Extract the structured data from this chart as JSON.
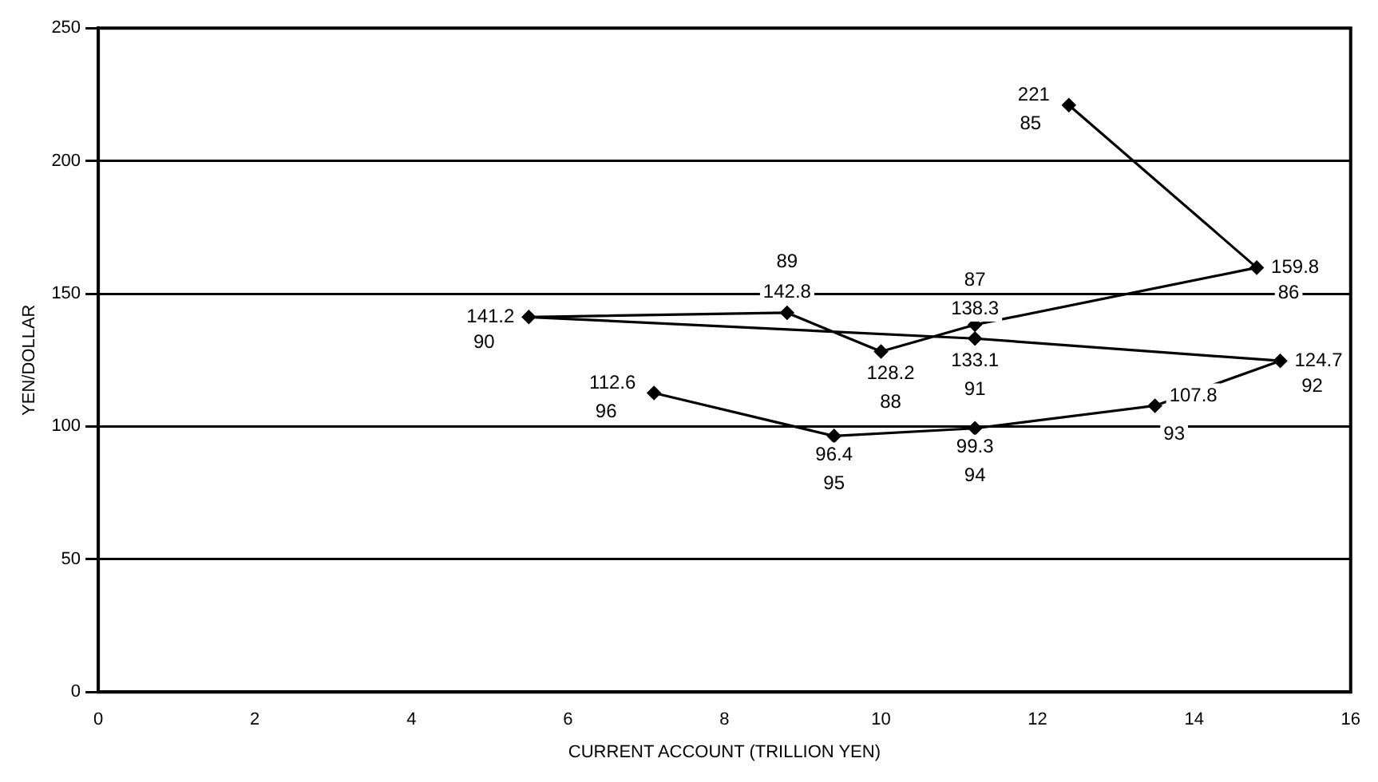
{
  "chart_data": {
    "type": "line",
    "xlabel": "CURRENT ACCOUNT (TRILLION YEN)",
    "ylabel": "YEN/DOLLAR",
    "x": [
      12.4,
      14.8,
      11.2,
      10.0,
      8.8,
      5.5,
      11.2,
      15.1,
      13.5,
      11.2,
      9.4,
      7.1
    ],
    "series": [
      {
        "color": "#000000",
        "values": [
          221,
          159.8,
          138.3,
          128.2,
          142.8,
          141.2,
          133.1,
          124.7,
          107.8,
          99.3,
          96.4,
          112.6
        ]
      }
    ],
    "data_labels": true,
    "annotations": [
      {
        "text": "85",
        "x": 12.4,
        "y": 221
      },
      {
        "text": "86",
        "x": 14.8,
        "y": 159.8
      },
      {
        "text": "87",
        "x": 11.2,
        "y": 138.3
      },
      {
        "text": "88",
        "x": 10.0,
        "y": 128.2
      },
      {
        "text": "89",
        "x": 8.8,
        "y": 142.8
      },
      {
        "text": "90",
        "x": 5.5,
        "y": 141.2
      },
      {
        "text": "91",
        "x": 11.2,
        "y": 133.1
      },
      {
        "text": "92",
        "x": 15.1,
        "y": 124.7
      },
      {
        "text": "93",
        "x": 13.5,
        "y": 107.8
      },
      {
        "text": "94",
        "x": 11.2,
        "y": 99.3
      },
      {
        "text": "95",
        "x": 9.4,
        "y": 96.4
      },
      {
        "text": "96",
        "x": 7.1,
        "y": 112.6
      }
    ],
    "xlim": [
      0,
      16
    ],
    "xticks": [
      0,
      2,
      4,
      6,
      8,
      10,
      12,
      14,
      16
    ],
    "ylim": [
      0,
      250
    ],
    "yticks": [
      0,
      50,
      100,
      150,
      200,
      250
    ],
    "grid": "y",
    "marker": "diamond",
    "line_style": "solid",
    "legend": false
  }
}
